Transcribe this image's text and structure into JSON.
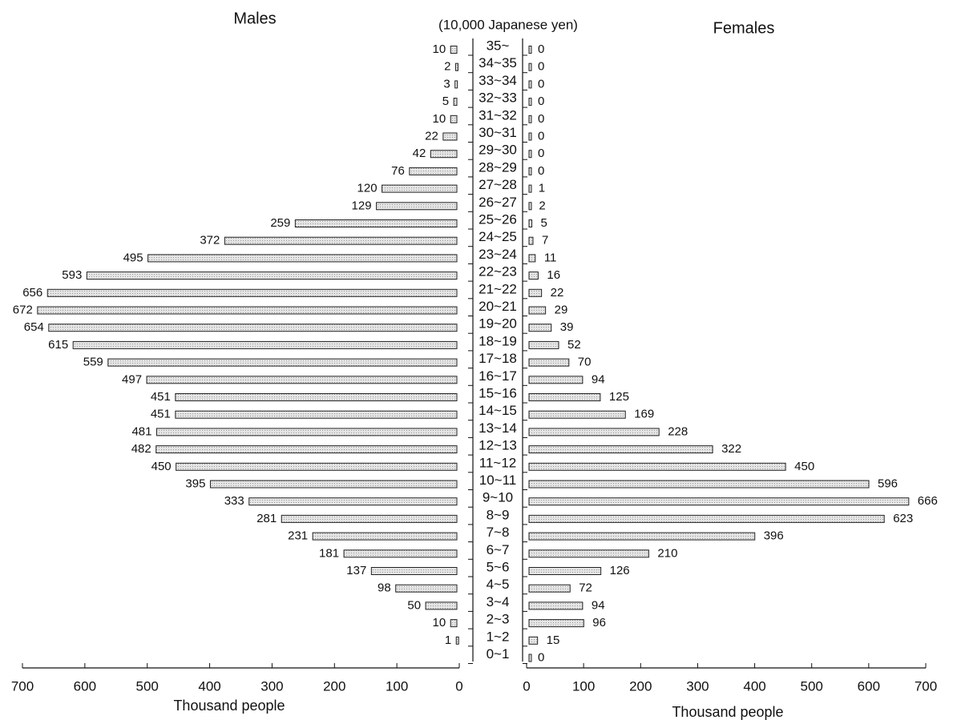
{
  "chart_data": {
    "type": "pyramid",
    "unit_label": "(10,000 Japanese yen)",
    "x_label": "Thousand people",
    "categories": [
      "35~",
      "34~35",
      "33~34",
      "32~33",
      "31~32",
      "30~31",
      "29~30",
      "28~29",
      "27~28",
      "26~27",
      "25~26",
      "24~25",
      "23~24",
      "22~23",
      "21~22",
      "20~21",
      "19~20",
      "18~19",
      "17~18",
      "16~17",
      "15~16",
      "14~15",
      "13~14",
      "12~13",
      "11~12",
      "10~11",
      "9~10",
      "8~9",
      "7~8",
      "6~7",
      "5~6",
      "4~5",
      "3~4",
      "2~3",
      "1~2",
      "0~1"
    ],
    "series": [
      {
        "name": "Males",
        "color": "#d9d9d9",
        "values": [
          10,
          2,
          3,
          5,
          10,
          22,
          42,
          76,
          120,
          129,
          259,
          372,
          495,
          593,
          656,
          672,
          654,
          615,
          559,
          497,
          451,
          451,
          481,
          482,
          450,
          395,
          333,
          281,
          231,
          181,
          137,
          98,
          50,
          10,
          1,
          null
        ]
      },
      {
        "name": "Females",
        "color": "#d9d9d9",
        "values": [
          0,
          0,
          0,
          0,
          0,
          0,
          0,
          0,
          1,
          2,
          5,
          7,
          11,
          16,
          22,
          29,
          39,
          52,
          70,
          94,
          125,
          169,
          228,
          322,
          450,
          596,
          666,
          623,
          396,
          210,
          126,
          72,
          94,
          96,
          15,
          0
        ]
      }
    ],
    "xlim": [
      0,
      700
    ],
    "xticks": [
      0,
      100,
      200,
      300,
      400,
      500,
      600,
      700
    ]
  }
}
